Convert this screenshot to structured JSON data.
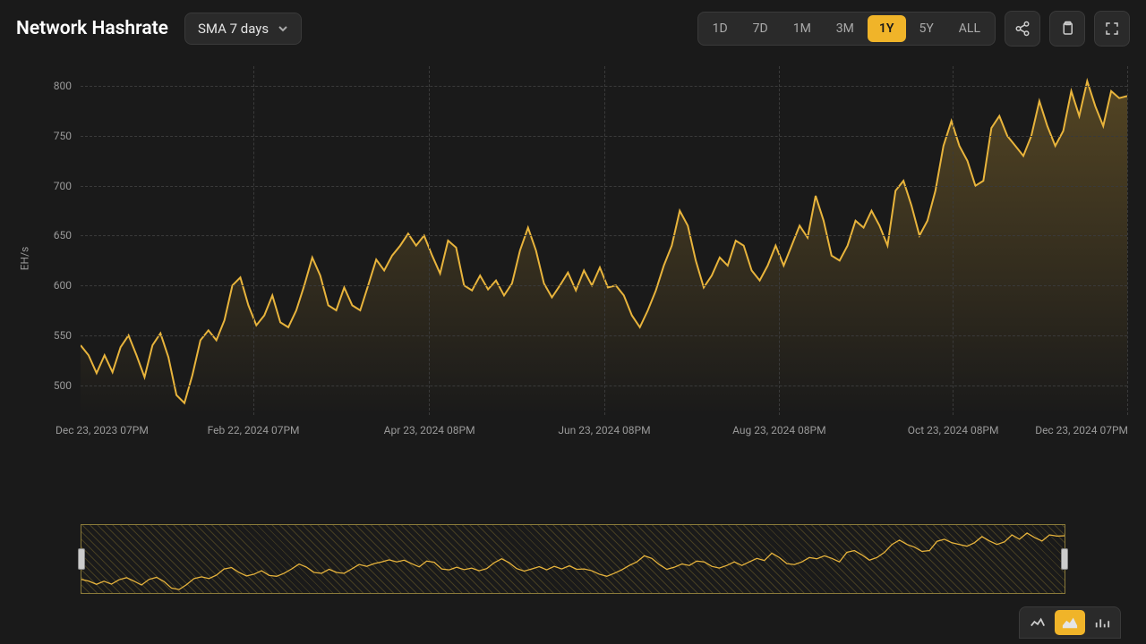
{
  "title": "Network Hashrate",
  "dropdown": {
    "label": "SMA 7 days"
  },
  "ranges": [
    "1D",
    "7D",
    "1M",
    "3M",
    "1Y",
    "5Y",
    "ALL"
  ],
  "active_range": "1Y",
  "chart": {
    "type": "area",
    "line_color": "#e8b43c",
    "line_width": 2,
    "fill_top": "rgba(232,180,60,0.28)",
    "fill_bottom": "rgba(232,180,60,0.0)",
    "background_color": "#1a1a1a",
    "grid_color": "#3a3a3a",
    "y_axis_label": "EH/s",
    "ylim": [
      470,
      820
    ],
    "y_ticks": [
      500,
      550,
      600,
      650,
      700,
      750,
      800
    ],
    "x_ticks": [
      {
        "pos": 0.0,
        "label": "Dec 23, 2023 07PM",
        "align": "left"
      },
      {
        "pos": 0.165,
        "label": "Feb 22, 2024 07PM",
        "align": "center"
      },
      {
        "pos": 0.333,
        "label": "Apr 23, 2024 08PM",
        "align": "center"
      },
      {
        "pos": 0.5,
        "label": "Jun 23, 2024 08PM",
        "align": "center"
      },
      {
        "pos": 0.667,
        "label": "Aug 23, 2024 08PM",
        "align": "center"
      },
      {
        "pos": 0.833,
        "label": "Oct 23, 2024 08PM",
        "align": "center"
      },
      {
        "pos": 1.0,
        "label": "Dec 23, 2024 07PM",
        "align": "right"
      }
    ],
    "grid_v": [
      0.165,
      0.333,
      0.5,
      0.667,
      0.833
    ],
    "series": [
      540,
      530,
      512,
      530,
      513,
      538,
      550,
      530,
      508,
      540,
      552,
      528,
      490,
      482,
      510,
      545,
      555,
      545,
      565,
      600,
      608,
      580,
      560,
      570,
      590,
      563,
      558,
      575,
      600,
      628,
      610,
      580,
      575,
      598,
      580,
      575,
      600,
      626,
      615,
      630,
      640,
      652,
      640,
      650,
      630,
      612,
      645,
      638,
      600,
      595,
      610,
      596,
      605,
      590,
      602,
      635,
      658,
      635,
      602,
      588,
      600,
      613,
      595,
      615,
      600,
      618,
      598,
      600,
      590,
      570,
      558,
      575,
      595,
      620,
      640,
      675,
      660,
      625,
      598,
      610,
      628,
      620,
      645,
      640,
      615,
      605,
      620,
      640,
      620,
      640,
      660,
      648,
      690,
      665,
      630,
      625,
      640,
      665,
      658,
      675,
      660,
      640,
      695,
      705,
      680,
      650,
      665,
      695,
      740,
      765,
      740,
      725,
      700,
      705,
      758,
      770,
      750,
      740,
      730,
      750,
      785,
      760,
      740,
      755,
      795,
      770,
      805,
      780,
      760,
      795,
      788,
      790
    ],
    "tick_fontsize": 12,
    "tick_color": "#999999",
    "title_fontsize": 21,
    "title_color": "#ffffff"
  },
  "chart_types": [
    "line",
    "area",
    "bar"
  ],
  "active_chart_type": "area",
  "accent_color": "#f0b429",
  "panel_bg": "#2a2a2a",
  "border_color": "#3a3a3a"
}
